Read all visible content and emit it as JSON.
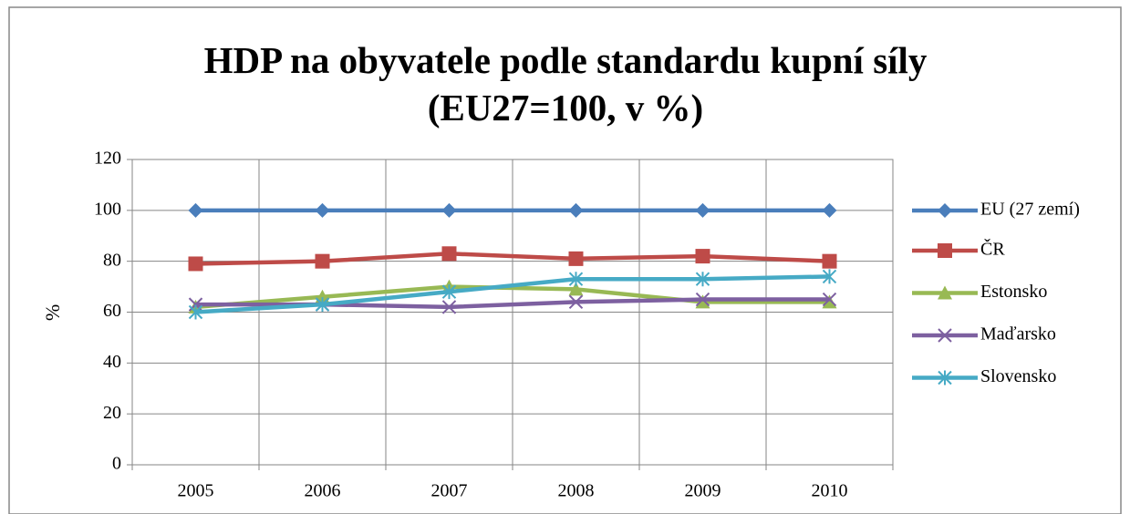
{
  "chart_data": {
    "type": "line",
    "title": "HDP na obyvatele podle standardu kupní síly (EU27=100, v %)",
    "ylabel": "%",
    "categories": [
      "2005",
      "2006",
      "2007",
      "2008",
      "2009",
      "2010"
    ],
    "series": [
      {
        "name": "EU (27 zemí)",
        "color": "#4a7ebb",
        "marker": "diamond",
        "values": [
          100,
          100,
          100,
          100,
          100,
          100
        ]
      },
      {
        "name": "ČR",
        "color": "#be4b48",
        "marker": "square",
        "values": [
          79,
          80,
          83,
          81,
          82,
          80
        ]
      },
      {
        "name": "Estonsko",
        "color": "#98b954",
        "marker": "triangle",
        "values": [
          62,
          66,
          70,
          69,
          64,
          64
        ]
      },
      {
        "name": "Maďarsko",
        "color": "#7d60a0",
        "marker": "x",
        "values": [
          63,
          63,
          62,
          64,
          65,
          65
        ]
      },
      {
        "name": "Slovensko",
        "color": "#46aac5",
        "marker": "star",
        "values": [
          60,
          63,
          68,
          73,
          73,
          74
        ]
      }
    ],
    "ylim": [
      0,
      120
    ],
    "yticks": [
      0,
      20,
      40,
      60,
      80,
      100,
      120
    ],
    "grid": true,
    "legend": "right"
  }
}
